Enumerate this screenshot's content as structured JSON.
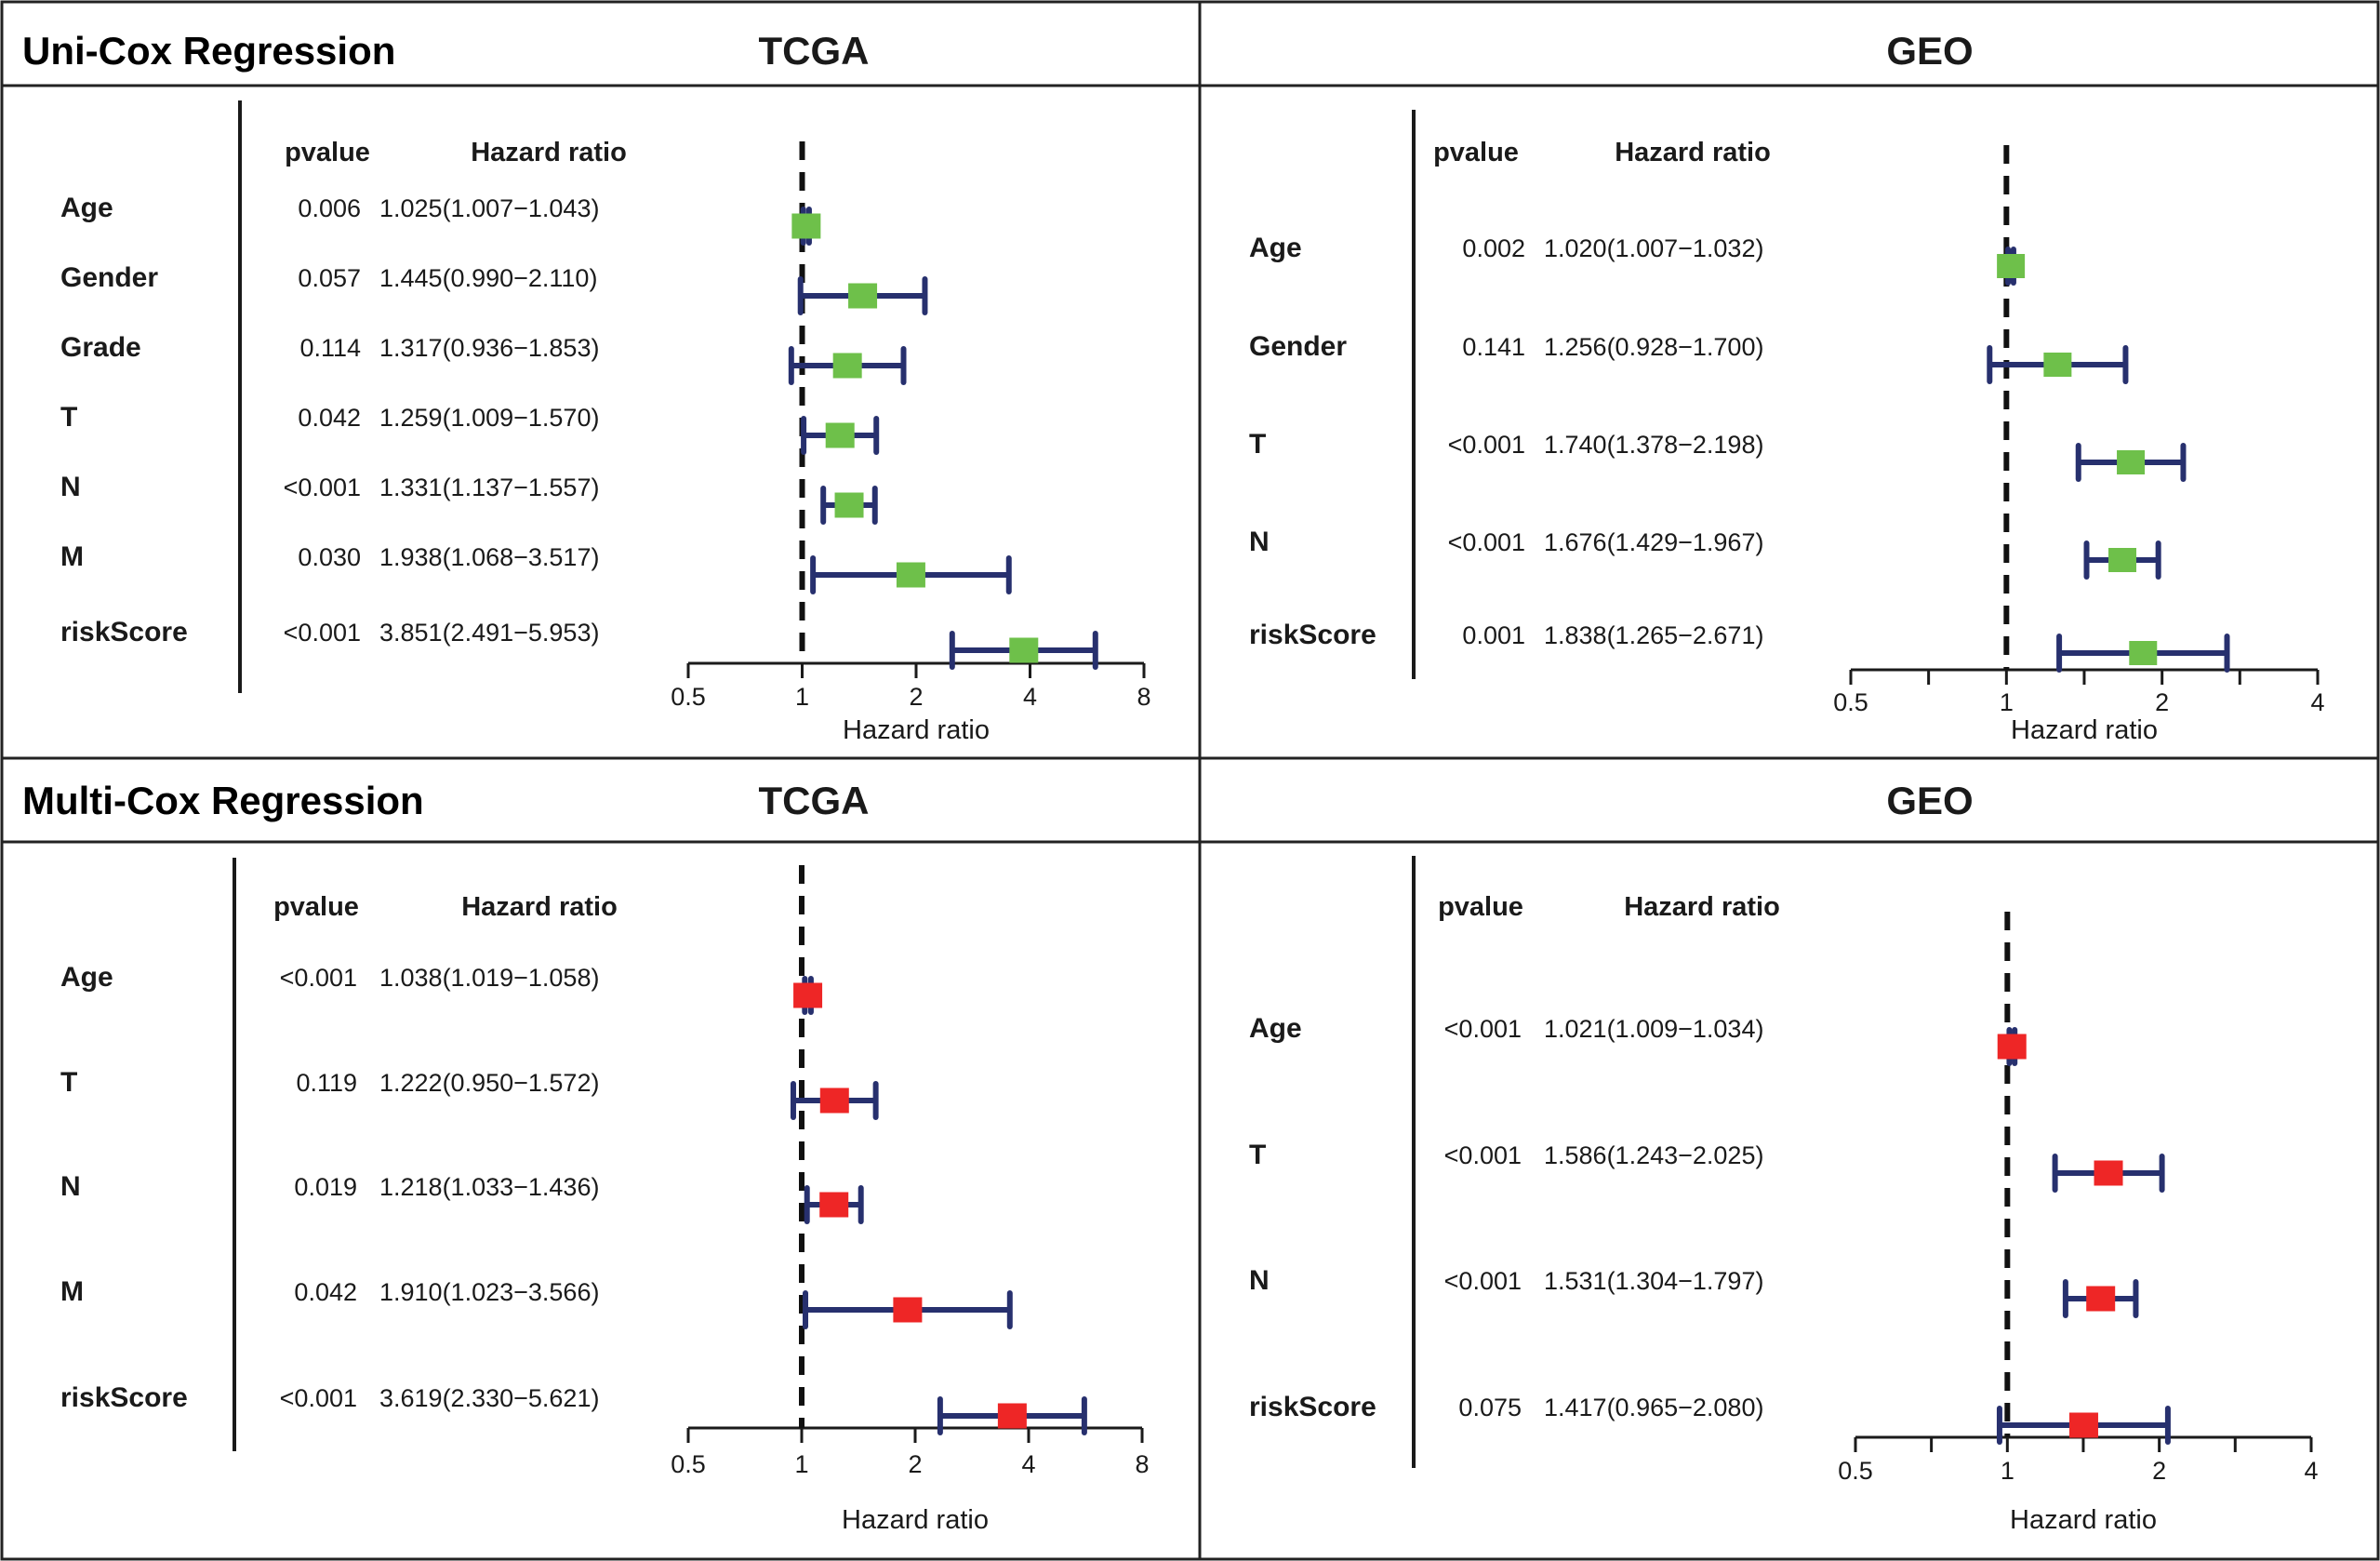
{
  "figure": {
    "sections": [
      {
        "title": "Uni-Cox Regression"
      },
      {
        "title": "Multi-Cox Regression"
      }
    ]
  },
  "colors": {
    "uni_marker": "#6ec04a",
    "multi_marker": "#ee2626",
    "ci_line": "#27306e",
    "border": "#222222"
  },
  "chart_data": [
    {
      "type": "forest",
      "panel": "uni-tcga",
      "section_title": "Uni-Cox Regression",
      "title": "TCGA",
      "header_pvalue": "pvalue",
      "header_hr": "Hazard ratio",
      "xlabel": "Hazard ratio",
      "xscale": "log2",
      "xlim": [
        0.5,
        8
      ],
      "ticks": [
        0.5,
        1,
        2,
        4,
        8
      ],
      "tick_labels": [
        "0.5",
        "1",
        "2",
        "4",
        "8"
      ],
      "minor_ticks": [],
      "reference": 1,
      "marker_color": "#6ec04a",
      "rows": [
        {
          "name": "Age",
          "pvalue": "0.006",
          "hr_text": "1.025(1.007−1.043)",
          "hr": 1.025,
          "lo": 1.007,
          "hi": 1.043
        },
        {
          "name": "Gender",
          "pvalue": "0.057",
          "hr_text": "1.445(0.990−2.110)",
          "hr": 1.445,
          "lo": 0.99,
          "hi": 2.11
        },
        {
          "name": "Grade",
          "pvalue": "0.114",
          "hr_text": "1.317(0.936−1.853)",
          "hr": 1.317,
          "lo": 0.936,
          "hi": 1.853
        },
        {
          "name": "T",
          "pvalue": "0.042",
          "hr_text": "1.259(1.009−1.570)",
          "hr": 1.259,
          "lo": 1.009,
          "hi": 1.57
        },
        {
          "name": "N",
          "pvalue": "<0.001",
          "hr_text": "1.331(1.137−1.557)",
          "hr": 1.331,
          "lo": 1.137,
          "hi": 1.557
        },
        {
          "name": "M",
          "pvalue": "0.030",
          "hr_text": "1.938(1.068−3.517)",
          "hr": 1.938,
          "lo": 1.068,
          "hi": 3.517
        },
        {
          "name": "riskScore",
          "pvalue": "<0.001",
          "hr_text": "3.851(2.491−5.953)",
          "hr": 3.851,
          "lo": 2.491,
          "hi": 5.953
        }
      ]
    },
    {
      "type": "forest",
      "panel": "uni-geo",
      "title": "GEO",
      "header_pvalue": "pvalue",
      "header_hr": "Hazard ratio",
      "xlabel": "Hazard ratio",
      "xscale": "log2",
      "xlim": [
        0.5,
        4
      ],
      "ticks": [
        0.5,
        1,
        2,
        4
      ],
      "tick_labels": [
        "0.5",
        "1",
        "2",
        "4"
      ],
      "minor_ticks": [
        0.707,
        1.414,
        2.828
      ],
      "reference": 1,
      "marker_color": "#6ec04a",
      "rows": [
        {
          "name": "Age",
          "pvalue": "0.002",
          "hr_text": "1.020(1.007−1.032)",
          "hr": 1.02,
          "lo": 1.007,
          "hi": 1.032
        },
        {
          "name": "Gender",
          "pvalue": "0.141",
          "hr_text": "1.256(0.928−1.700)",
          "hr": 1.256,
          "lo": 0.928,
          "hi": 1.7
        },
        {
          "name": "T",
          "pvalue": "<0.001",
          "hr_text": "1.740(1.378−2.198)",
          "hr": 1.74,
          "lo": 1.378,
          "hi": 2.198
        },
        {
          "name": "N",
          "pvalue": "<0.001",
          "hr_text": "1.676(1.429−1.967)",
          "hr": 1.676,
          "lo": 1.429,
          "hi": 1.967
        },
        {
          "name": "riskScore",
          "pvalue": "0.001",
          "hr_text": "1.838(1.265−2.671)",
          "hr": 1.838,
          "lo": 1.265,
          "hi": 2.671
        }
      ]
    },
    {
      "type": "forest",
      "panel": "multi-tcga",
      "section_title": "Multi-Cox Regression",
      "title": "TCGA",
      "header_pvalue": "pvalue",
      "header_hr": "Hazard ratio",
      "xlabel": "Hazard ratio",
      "xscale": "log2",
      "xlim": [
        0.5,
        8
      ],
      "ticks": [
        0.5,
        1,
        2,
        4,
        8
      ],
      "tick_labels": [
        "0.5",
        "1",
        "2",
        "4",
        "8"
      ],
      "minor_ticks": [],
      "reference": 1,
      "marker_color": "#ee2626",
      "rows": [
        {
          "name": "Age",
          "pvalue": "<0.001",
          "hr_text": "1.038(1.019−1.058)",
          "hr": 1.038,
          "lo": 1.019,
          "hi": 1.058
        },
        {
          "name": "T",
          "pvalue": "0.119",
          "hr_text": "1.222(0.950−1.572)",
          "hr": 1.222,
          "lo": 0.95,
          "hi": 1.572
        },
        {
          "name": "N",
          "pvalue": "0.019",
          "hr_text": "1.218(1.033−1.436)",
          "hr": 1.218,
          "lo": 1.033,
          "hi": 1.436
        },
        {
          "name": "M",
          "pvalue": "0.042",
          "hr_text": "1.910(1.023−3.566)",
          "hr": 1.91,
          "lo": 1.023,
          "hi": 3.566
        },
        {
          "name": "riskScore",
          "pvalue": "<0.001",
          "hr_text": "3.619(2.330−5.621)",
          "hr": 3.619,
          "lo": 2.33,
          "hi": 5.621
        }
      ]
    },
    {
      "type": "forest",
      "panel": "multi-geo",
      "title": "GEO",
      "header_pvalue": "pvalue",
      "header_hr": "Hazard ratio",
      "xlabel": "Hazard ratio",
      "xscale": "log2",
      "xlim": [
        0.5,
        4
      ],
      "ticks": [
        0.5,
        1,
        2,
        4
      ],
      "tick_labels": [
        "0.5",
        "1",
        "2",
        "4"
      ],
      "minor_ticks": [
        0.707,
        1.414,
        2.828
      ],
      "reference": 1,
      "marker_color": "#ee2626",
      "rows": [
        {
          "name": "Age",
          "pvalue": "<0.001",
          "hr_text": "1.021(1.009−1.034)",
          "hr": 1.021,
          "lo": 1.009,
          "hi": 1.034
        },
        {
          "name": "T",
          "pvalue": "<0.001",
          "hr_text": "1.586(1.243−2.025)",
          "hr": 1.586,
          "lo": 1.243,
          "hi": 2.025
        },
        {
          "name": "N",
          "pvalue": "<0.001",
          "hr_text": "1.531(1.304−1.797)",
          "hr": 1.531,
          "lo": 1.304,
          "hi": 1.797
        },
        {
          "name": "riskScore",
          "pvalue": "0.075",
          "hr_text": "1.417(0.965−2.080)",
          "hr": 1.417,
          "lo": 0.965,
          "hi": 2.08
        }
      ]
    }
  ]
}
